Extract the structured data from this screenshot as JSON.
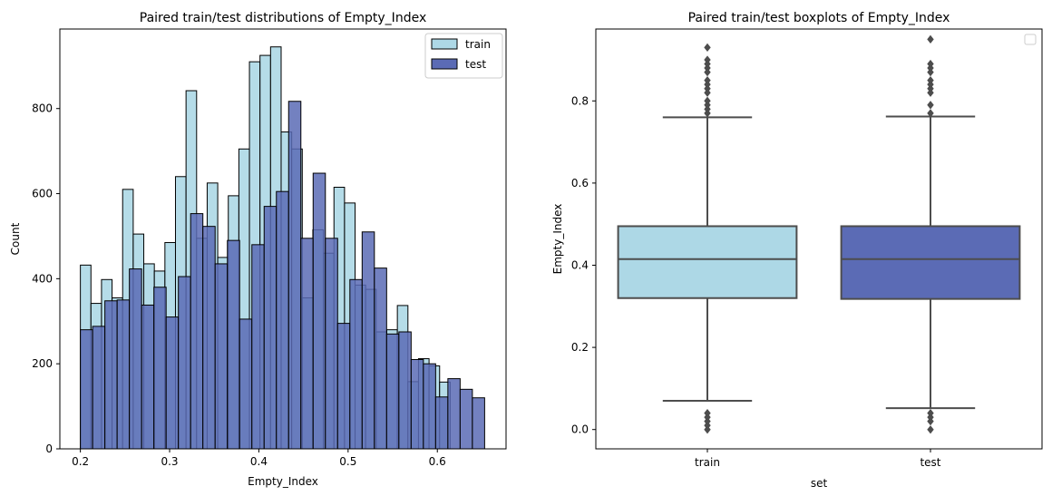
{
  "chart_data": [
    {
      "type": "histogram",
      "title": "Paired train/test distributions of Empty_Index",
      "xlabel": "Empty_Index",
      "ylabel": "Count",
      "xlim": [
        0.177,
        0.677
      ],
      "ylim": [
        0,
        987
      ],
      "xticks": [
        0.2,
        0.3,
        0.4,
        0.5,
        0.6
      ],
      "xtick_labels": [
        "0.2",
        "0.3",
        "0.4",
        "0.5",
        "0.6"
      ],
      "yticks": [
        0,
        200,
        400,
        600,
        800
      ],
      "ytick_labels": [
        "0",
        "200",
        "400",
        "600",
        "800"
      ],
      "bin_start": 0.2,
      "bin_width": 0.01184,
      "legend": {
        "position": "upper-right",
        "entries": [
          "train",
          "test"
        ]
      },
      "series": [
        {
          "name": "train",
          "color": "#add8e6",
          "values": [
            432,
            342,
            398,
            355,
            610,
            505,
            435,
            418,
            485,
            640,
            842,
            495,
            625,
            450,
            595,
            705,
            910,
            925,
            945,
            745,
            705,
            355,
            515,
            460,
            615,
            578,
            385,
            375,
            275,
            280,
            337,
            158,
            212,
            195,
            157
          ]
        },
        {
          "name": "test",
          "color": "#5b6bb5",
          "values": [
            280,
            288,
            348,
            350,
            423,
            338,
            380,
            310,
            405,
            553,
            523,
            435,
            490,
            305,
            480,
            570,
            605,
            817,
            495,
            648,
            495,
            295,
            398,
            510,
            425,
            270,
            275,
            210,
            200,
            122,
            165,
            140,
            120
          ]
        }
      ]
    },
    {
      "type": "boxplot",
      "title": "Paired train/test boxplots of Empty_Index",
      "xlabel": "set",
      "ylabel": "Empty_Index",
      "categories": [
        "train",
        "test"
      ],
      "ylim": [
        -0.047,
        0.975
      ],
      "yticks": [
        0.0,
        0.2,
        0.4,
        0.6,
        0.8
      ],
      "ytick_labels": [
        "0.0",
        "0.2",
        "0.4",
        "0.6",
        "0.8"
      ],
      "boxes": [
        {
          "name": "train",
          "color": "#add8e6",
          "whisker_low": 0.07,
          "q1": 0.32,
          "median": 0.415,
          "q3": 0.495,
          "whisker_high": 0.76,
          "outliers": [
            0.0,
            0.01,
            0.02,
            0.03,
            0.04,
            0.77,
            0.78,
            0.79,
            0.8,
            0.82,
            0.83,
            0.84,
            0.85,
            0.87,
            0.88,
            0.89,
            0.9,
            0.93
          ]
        },
        {
          "name": "test",
          "color": "#5b6bb5",
          "whisker_low": 0.052,
          "q1": 0.318,
          "median": 0.415,
          "q3": 0.495,
          "whisker_high": 0.762,
          "outliers": [
            0.0,
            0.02,
            0.03,
            0.04,
            0.77,
            0.79,
            0.82,
            0.83,
            0.84,
            0.85,
            0.87,
            0.88,
            0.89,
            0.95
          ]
        }
      ]
    }
  ]
}
